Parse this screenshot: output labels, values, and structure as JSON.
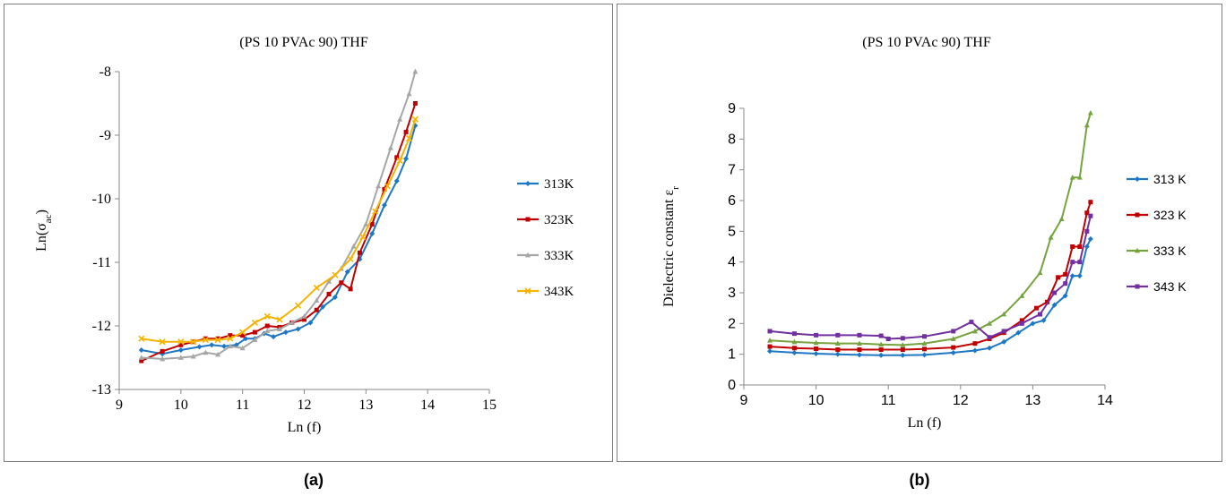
{
  "chart_data": [
    {
      "type": "line",
      "panel_label": "(a)",
      "title": "(PS 10 PVAc 90) THF",
      "xlabel": "Ln (f)",
      "ylabel_main": "Ln(σ",
      "ylabel_sub": "ac",
      "ylabel_end": ")",
      "xlim": [
        9,
        15
      ],
      "ylim": [
        -13,
        -8
      ],
      "xticks": [
        "9",
        "10",
        "11",
        "12",
        "13",
        "14",
        "15"
      ],
      "yticks": [
        "-8",
        "-9",
        "-10",
        "-11",
        "-12",
        "-13"
      ],
      "legend_position": "right",
      "series": [
        {
          "name": "313K",
          "color": "#1f77c4",
          "marker": "diamond",
          "x": [
            9.36,
            9.7,
            10.0,
            10.3,
            10.5,
            10.7,
            10.9,
            11.05,
            11.2,
            11.35,
            11.5,
            11.7,
            11.9,
            12.1,
            12.3,
            12.5,
            12.7,
            12.9,
            13.1,
            13.3,
            13.5,
            13.65,
            13.8
          ],
          "y": [
            -12.38,
            -12.44,
            -12.38,
            -12.33,
            -12.3,
            -12.32,
            -12.3,
            -12.2,
            -12.2,
            -12.12,
            -12.17,
            -12.1,
            -12.05,
            -11.95,
            -11.7,
            -11.55,
            -11.15,
            -10.95,
            -10.55,
            -10.1,
            -9.72,
            -9.37,
            -8.85
          ]
        },
        {
          "name": "323K",
          "color": "#c00000",
          "marker": "square",
          "x": [
            9.36,
            9.7,
            10.0,
            10.2,
            10.4,
            10.6,
            10.8,
            11.0,
            11.2,
            11.4,
            11.6,
            11.8,
            12.0,
            12.2,
            12.4,
            12.6,
            12.75,
            12.9,
            13.1,
            13.3,
            13.5,
            13.65,
            13.8
          ],
          "y": [
            -12.55,
            -12.4,
            -12.3,
            -12.25,
            -12.2,
            -12.2,
            -12.15,
            -12.15,
            -12.1,
            -12.0,
            -12.02,
            -11.95,
            -11.9,
            -11.75,
            -11.5,
            -11.32,
            -11.42,
            -10.85,
            -10.4,
            -9.85,
            -9.35,
            -8.95,
            -8.5
          ]
        },
        {
          "name": "333K",
          "color": "#a6a6a6",
          "marker": "triangle",
          "x": [
            9.36,
            9.7,
            10.0,
            10.2,
            10.4,
            10.6,
            10.8,
            11.0,
            11.2,
            11.4,
            11.6,
            11.8,
            12.0,
            12.2,
            12.4,
            12.6,
            12.8,
            13.0,
            13.2,
            13.4,
            13.55,
            13.7,
            13.8
          ],
          "y": [
            -12.5,
            -12.52,
            -12.5,
            -12.48,
            -12.42,
            -12.45,
            -12.32,
            -12.35,
            -12.22,
            -12.08,
            -12.05,
            -11.95,
            -11.85,
            -11.6,
            -11.3,
            -11.1,
            -10.75,
            -10.4,
            -9.8,
            -9.2,
            -8.75,
            -8.35,
            -8.0
          ]
        },
        {
          "name": "343K",
          "color": "#f4b400",
          "marker": "x",
          "x": [
            9.36,
            9.7,
            10.0,
            10.2,
            10.4,
            10.6,
            10.8,
            11.0,
            11.2,
            11.4,
            11.6,
            11.9,
            12.2,
            12.5,
            12.75,
            12.95,
            13.15,
            13.35,
            13.55,
            13.7,
            13.8
          ],
          "y": [
            -12.2,
            -12.25,
            -12.25,
            -12.25,
            -12.22,
            -12.22,
            -12.2,
            -12.1,
            -11.95,
            -11.85,
            -11.9,
            -11.68,
            -11.4,
            -11.2,
            -10.95,
            -10.6,
            -10.2,
            -9.8,
            -9.4,
            -9.05,
            -8.75
          ]
        }
      ]
    },
    {
      "type": "line",
      "panel_label": "(b)",
      "title": "(PS 10 PVAc 90) THF",
      "xlabel": "Ln (f)",
      "ylabel_main": "Dielectric constant ε",
      "ylabel_sub": "r",
      "ylabel_end": "",
      "xlim": [
        9,
        14
      ],
      "ylim": [
        0,
        9
      ],
      "xticks": [
        "9",
        "10",
        "11",
        "12",
        "13",
        "14"
      ],
      "yticks": [
        "0",
        "1",
        "2",
        "3",
        "4",
        "5",
        "6",
        "7",
        "8",
        "9"
      ],
      "legend_position": "right",
      "series": [
        {
          "name": "313 K",
          "color": "#1f77c4",
          "marker": "diamond",
          "x": [
            9.36,
            9.7,
            10.0,
            10.3,
            10.6,
            10.9,
            11.2,
            11.5,
            11.9,
            12.2,
            12.4,
            12.6,
            12.8,
            13.0,
            13.15,
            13.3,
            13.45,
            13.55,
            13.65,
            13.75,
            13.8
          ],
          "y": [
            1.1,
            1.05,
            1.02,
            1.0,
            0.98,
            0.97,
            0.97,
            0.98,
            1.05,
            1.12,
            1.2,
            1.4,
            1.7,
            2.0,
            2.1,
            2.6,
            2.9,
            3.55,
            3.55,
            4.5,
            4.75
          ]
        },
        {
          "name": "323 K",
          "color": "#c00000",
          "marker": "square",
          "x": [
            9.36,
            9.7,
            10.0,
            10.3,
            10.6,
            10.9,
            11.2,
            11.5,
            11.9,
            12.2,
            12.4,
            12.6,
            12.85,
            13.05,
            13.2,
            13.35,
            13.45,
            13.55,
            13.65,
            13.75,
            13.8
          ],
          "y": [
            1.25,
            1.2,
            1.18,
            1.15,
            1.15,
            1.15,
            1.15,
            1.17,
            1.22,
            1.35,
            1.5,
            1.7,
            2.1,
            2.5,
            2.7,
            3.5,
            3.6,
            4.5,
            4.5,
            5.6,
            5.95
          ]
        },
        {
          "name": "333 K",
          "color": "#77a33f",
          "marker": "triangle",
          "x": [
            9.36,
            9.7,
            10.0,
            10.3,
            10.6,
            10.9,
            11.2,
            11.5,
            11.9,
            12.2,
            12.4,
            12.6,
            12.85,
            13.1,
            13.25,
            13.4,
            13.55,
            13.65,
            13.75,
            13.8
          ],
          "y": [
            1.45,
            1.4,
            1.37,
            1.35,
            1.35,
            1.32,
            1.3,
            1.35,
            1.5,
            1.75,
            2.0,
            2.3,
            2.9,
            3.65,
            4.8,
            5.4,
            6.75,
            6.75,
            8.45,
            8.85
          ]
        },
        {
          "name": "343 K",
          "color": "#7030a0",
          "marker": "square",
          "x": [
            9.36,
            9.7,
            10.0,
            10.3,
            10.6,
            10.9,
            11.0,
            11.2,
            11.5,
            11.9,
            12.15,
            12.4,
            12.6,
            12.85,
            13.1,
            13.3,
            13.45,
            13.55,
            13.65,
            13.75,
            13.8
          ],
          "y": [
            1.75,
            1.67,
            1.62,
            1.62,
            1.62,
            1.6,
            1.5,
            1.52,
            1.58,
            1.75,
            2.05,
            1.55,
            1.75,
            2.0,
            2.3,
            3.0,
            3.3,
            4.0,
            4.0,
            5.0,
            5.5
          ]
        }
      ]
    }
  ]
}
